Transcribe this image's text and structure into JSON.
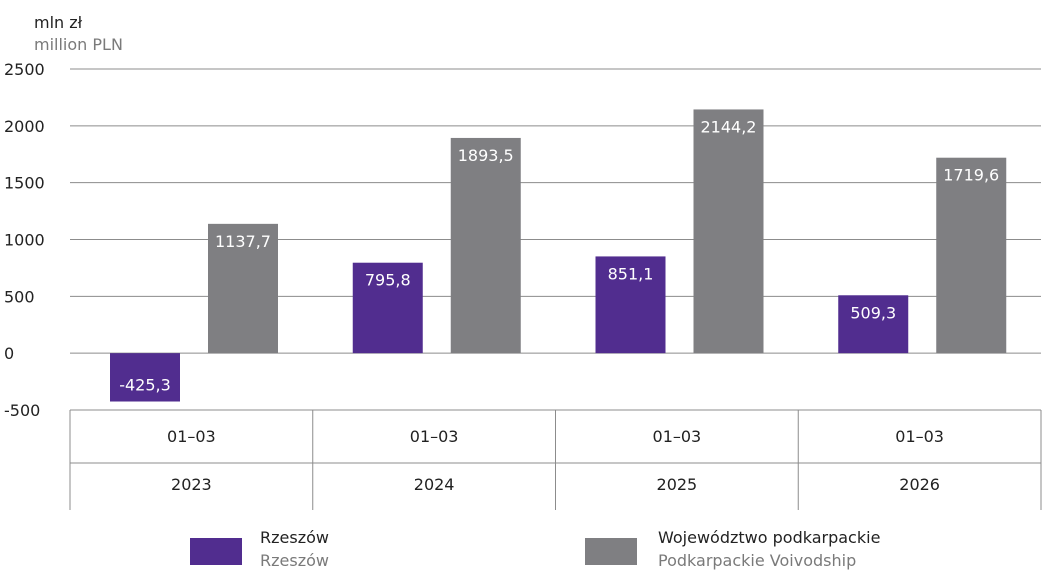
{
  "chart_data": {
    "type": "bar",
    "ylabel": "mln zł",
    "ylabel_en": "million PLN",
    "ylim": [
      -500,
      2500
    ],
    "yticks": [
      -500,
      0,
      500,
      1000,
      1500,
      2000,
      2500
    ],
    "grid": true,
    "categories": [
      {
        "period": "01–03",
        "year": "2023"
      },
      {
        "period": "01–03",
        "year": "2024"
      },
      {
        "period": "01–03",
        "year": "2025"
      },
      {
        "period": "01–03",
        "year": "2026"
      }
    ],
    "series": [
      {
        "name": "Rzeszów",
        "name_en": "Rzeszów",
        "color": "#512d8f",
        "values": [
          -425.3,
          795.8,
          851.1,
          509.3
        ],
        "labels": [
          "-425,3",
          "795,8",
          "851,1",
          "509,3"
        ]
      },
      {
        "name": "Województwo podkarpackie",
        "name_en": "Podkarpackie Voivodship",
        "color": "#7f7f82",
        "values": [
          1137.7,
          1893.5,
          2144.2,
          1719.6
        ],
        "labels": [
          "1137,7",
          "1893,5",
          "2144,2",
          "1719,6"
        ]
      }
    ],
    "legend_position": "bottom"
  }
}
